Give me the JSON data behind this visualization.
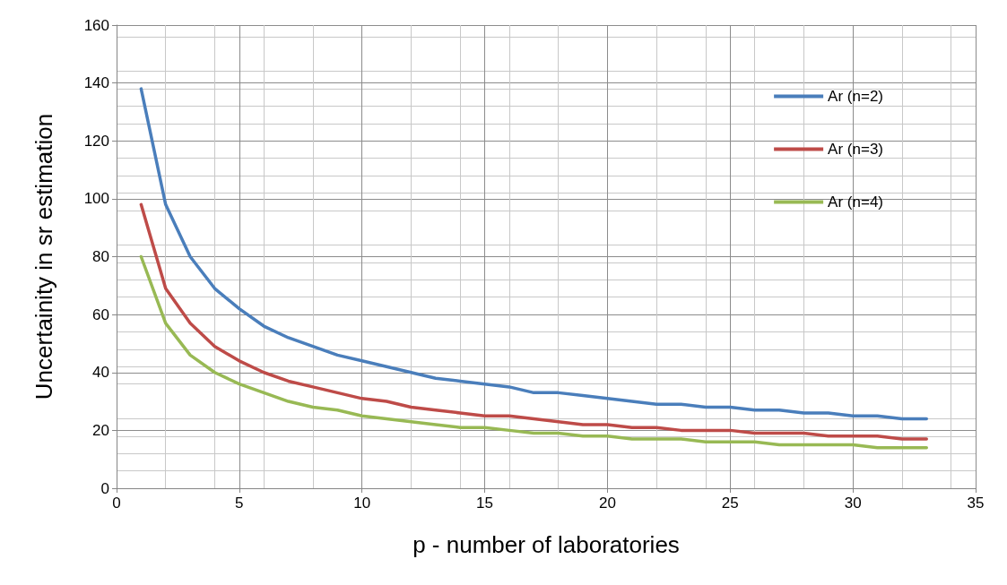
{
  "chart_data": {
    "type": "line",
    "xlabel": "p - number of laboratories",
    "ylabel": "Uncertainity in sr estimation",
    "x": [
      1,
      2,
      3,
      4,
      5,
      6,
      7,
      8,
      9,
      10,
      11,
      12,
      13,
      14,
      15,
      16,
      17,
      18,
      19,
      20,
      21,
      22,
      23,
      24,
      25,
      26,
      27,
      28,
      29,
      30,
      31,
      32,
      33
    ],
    "series": [
      {
        "name": "Ar (n=2)",
        "color": "#4a7ebb",
        "values": [
          138,
          98,
          80,
          69,
          62,
          56,
          52,
          49,
          46,
          44,
          42,
          40,
          38,
          37,
          36,
          35,
          33,
          33,
          32,
          31,
          30,
          29,
          29,
          28,
          28,
          27,
          27,
          26,
          26,
          25,
          25,
          24,
          24
        ]
      },
      {
        "name": "Ar (n=3)",
        "color": "#be4b48",
        "values": [
          98,
          69,
          57,
          49,
          44,
          40,
          37,
          35,
          33,
          31,
          30,
          28,
          27,
          26,
          25,
          25,
          24,
          23,
          22,
          22,
          21,
          21,
          20,
          20,
          20,
          19,
          19,
          19,
          18,
          18,
          18,
          17,
          17
        ]
      },
      {
        "name": "Ar (n=4)",
        "color": "#98b954",
        "values": [
          80,
          57,
          46,
          40,
          36,
          33,
          30,
          28,
          27,
          25,
          24,
          23,
          22,
          21,
          21,
          20,
          19,
          19,
          18,
          18,
          17,
          17,
          17,
          16,
          16,
          16,
          15,
          15,
          15,
          15,
          14,
          14,
          14
        ]
      }
    ],
    "xlim": [
      0,
      35
    ],
    "xticks": [
      0,
      5,
      10,
      15,
      20,
      25,
      30,
      35
    ],
    "ylim": [
      0,
      160
    ],
    "yticks": [
      0,
      20,
      40,
      60,
      80,
      100,
      120,
      140,
      160
    ],
    "grid": true,
    "legend": "top right",
    "marker": "none",
    "line_style": "solid"
  }
}
